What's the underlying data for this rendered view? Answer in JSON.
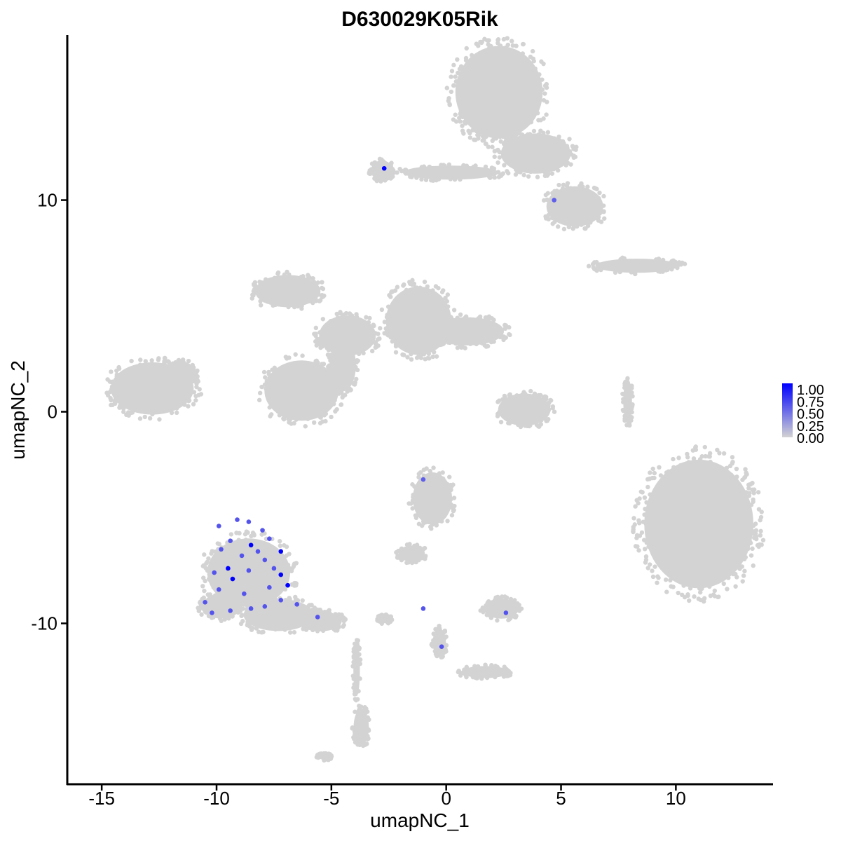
{
  "chart_data": {
    "type": "scatter",
    "title": "D630029K05Rik",
    "xlabel": "umapNC_1",
    "ylabel": "umapNC_2",
    "xlim": [
      -16.5,
      14.2
    ],
    "ylim": [
      -17.6,
      17.8
    ],
    "x_ticks": [
      -15,
      -10,
      -5,
      0,
      5,
      10
    ],
    "x_tick_labels": [
      "-15",
      "-10",
      "-5",
      "0",
      "5",
      "10"
    ],
    "y_ticks": [
      10,
      0,
      -10
    ],
    "y_tick_labels": [
      "10",
      "0",
      "-10"
    ],
    "grid": false,
    "legend": {
      "position": "right",
      "type": "colorbar",
      "labels": [
        "1.00",
        "0.75",
        "0.50",
        "0.25",
        "0.00"
      ],
      "low_color": "#d3d3d3",
      "high_color": "#0000ff"
    },
    "background_color": "#d3d3d3",
    "clusters": [
      {
        "cx": 2.3,
        "cy": 15.1,
        "rx": 2.0,
        "ry": 2.3
      },
      {
        "cx": 3.9,
        "cy": 12.2,
        "rx": 1.6,
        "ry": 1.0
      },
      {
        "cx": 5.6,
        "cy": 9.7,
        "rx": 1.3,
        "ry": 1.0
      },
      {
        "cx": 0.2,
        "cy": 11.3,
        "rx": 2.2,
        "ry": 0.35
      },
      {
        "cx": -2.8,
        "cy": 11.4,
        "rx": 0.5,
        "ry": 0.5
      },
      {
        "cx": 8.3,
        "cy": 6.9,
        "rx": 1.9,
        "ry": 0.35
      },
      {
        "cx": -12.8,
        "cy": 1.1,
        "rx": 1.9,
        "ry": 1.3
      },
      {
        "cx": -11.5,
        "cy": 1.8,
        "rx": 0.6,
        "ry": 0.6
      },
      {
        "cx": -6.9,
        "cy": 5.7,
        "rx": 1.5,
        "ry": 0.8
      },
      {
        "cx": -6.3,
        "cy": 1.0,
        "rx": 1.7,
        "ry": 1.5
      },
      {
        "cx": -1.2,
        "cy": 4.3,
        "rx": 1.5,
        "ry": 1.7
      },
      {
        "cx": 0.9,
        "cy": 3.8,
        "rx": 1.7,
        "ry": 0.7
      },
      {
        "cx": -4.3,
        "cy": 3.6,
        "rx": 1.3,
        "ry": 1.0
      },
      {
        "cx": -4.5,
        "cy": 2.2,
        "rx": 0.6,
        "ry": 1.3
      },
      {
        "cx": 3.4,
        "cy": 0.1,
        "rx": 1.2,
        "ry": 0.8
      },
      {
        "cx": 11.0,
        "cy": -5.3,
        "rx": 2.5,
        "ry": 3.2
      },
      {
        "cx": 7.9,
        "cy": 0.5,
        "rx": 0.2,
        "ry": 1.1
      },
      {
        "cx": -8.6,
        "cy": -7.6,
        "rx": 1.9,
        "ry": 1.7
      },
      {
        "cx": -7.3,
        "cy": -9.6,
        "rx": 1.6,
        "ry": 0.8
      },
      {
        "cx": -9.8,
        "cy": -9.2,
        "rx": 0.9,
        "ry": 0.6
      },
      {
        "cx": -5.5,
        "cy": -9.9,
        "rx": 1.0,
        "ry": 0.5
      },
      {
        "cx": -3.7,
        "cy": -14.9,
        "rx": 0.35,
        "ry": 0.9
      },
      {
        "cx": -3.9,
        "cy": -12.2,
        "rx": 0.15,
        "ry": 1.3
      },
      {
        "cx": -0.6,
        "cy": -4.1,
        "rx": 0.9,
        "ry": 1.3
      },
      {
        "cx": -1.5,
        "cy": -6.7,
        "rx": 0.6,
        "ry": 0.4
      },
      {
        "cx": 2.4,
        "cy": -9.3,
        "rx": 0.8,
        "ry": 0.5
      },
      {
        "cx": -0.3,
        "cy": -10.9,
        "rx": 0.3,
        "ry": 0.7
      },
      {
        "cx": 1.7,
        "cy": -12.3,
        "rx": 1.1,
        "ry": 0.3
      },
      {
        "cx": -5.3,
        "cy": -16.3,
        "rx": 0.3,
        "ry": 0.15
      },
      {
        "cx": -2.7,
        "cy": -9.8,
        "rx": 0.3,
        "ry": 0.2
      }
    ],
    "expressing_points": [
      {
        "x": -2.7,
        "y": 11.5,
        "value": 1.0
      },
      {
        "x": 4.7,
        "y": 10.0,
        "value": 0.55
      },
      {
        "x": -1.0,
        "y": -3.2,
        "value": 0.55
      },
      {
        "x": -1.0,
        "y": -9.3,
        "value": 0.6
      },
      {
        "x": -0.2,
        "y": -11.1,
        "value": 0.6
      },
      {
        "x": 2.6,
        "y": -9.5,
        "value": 0.6
      },
      {
        "x": -5.6,
        "y": -9.7,
        "value": 0.6
      },
      {
        "x": -8.5,
        "y": -6.3,
        "value": 1.0
      },
      {
        "x": -7.2,
        "y": -6.6,
        "value": 1.0
      },
      {
        "x": -9.5,
        "y": -7.4,
        "value": 1.0
      },
      {
        "x": -9.3,
        "y": -7.9,
        "value": 1.0
      },
      {
        "x": -7.2,
        "y": -7.7,
        "value": 1.0
      },
      {
        "x": -6.9,
        "y": -8.2,
        "value": 1.0
      },
      {
        "x": -6.5,
        "y": -9.1,
        "value": 0.6
      },
      {
        "x": -10.5,
        "y": -9.0,
        "value": 0.6
      },
      {
        "x": -9.9,
        "y": -5.4,
        "value": 0.6
      },
      {
        "x": -9.1,
        "y": -5.1,
        "value": 0.6
      },
      {
        "x": -8.6,
        "y": -5.2,
        "value": 0.6
      },
      {
        "x": -8.0,
        "y": -5.6,
        "value": 0.6
      },
      {
        "x": -7.7,
        "y": -6.0,
        "value": 0.6
      },
      {
        "x": -9.8,
        "y": -6.5,
        "value": 0.6
      },
      {
        "x": -8.9,
        "y": -6.8,
        "value": 0.6
      },
      {
        "x": -7.9,
        "y": -7.0,
        "value": 0.6
      },
      {
        "x": -10.1,
        "y": -7.6,
        "value": 0.6
      },
      {
        "x": -8.6,
        "y": -7.5,
        "value": 0.6
      },
      {
        "x": -7.7,
        "y": -8.3,
        "value": 0.6
      },
      {
        "x": -9.9,
        "y": -8.4,
        "value": 0.6
      },
      {
        "x": -8.8,
        "y": -8.6,
        "value": 0.6
      },
      {
        "x": -10.2,
        "y": -9.5,
        "value": 0.6
      },
      {
        "x": -9.4,
        "y": -9.4,
        "value": 0.6
      },
      {
        "x": -8.5,
        "y": -9.3,
        "value": 0.6
      },
      {
        "x": -7.9,
        "y": -9.2,
        "value": 0.6
      },
      {
        "x": -7.2,
        "y": -8.9,
        "value": 0.6
      },
      {
        "x": -8.2,
        "y": -6.6,
        "value": 0.6
      },
      {
        "x": -9.4,
        "y": -6.1,
        "value": 0.6
      },
      {
        "x": -7.5,
        "y": -7.4,
        "value": 0.6
      }
    ]
  }
}
